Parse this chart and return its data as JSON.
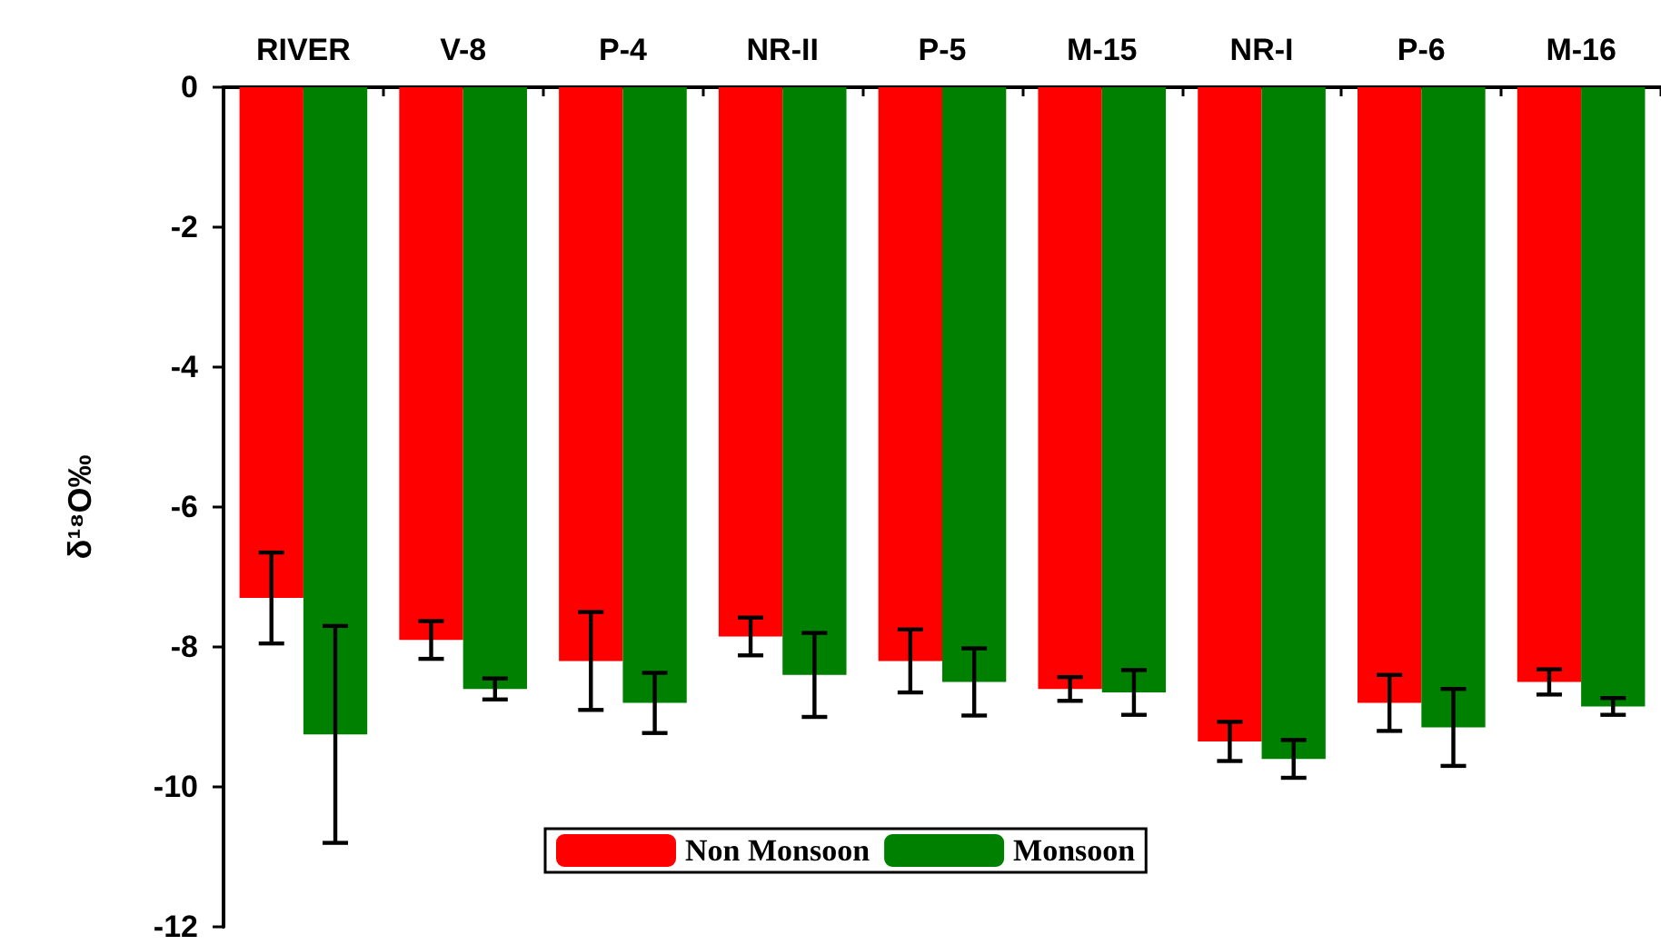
{
  "chart_data": {
    "type": "bar",
    "ylabel": "δ¹⁸O‰",
    "categories": [
      "RIVER",
      "V-8",
      "P-4",
      "NR-II",
      "P-5",
      "M-15",
      "NR-I",
      "P-6",
      "M-16"
    ],
    "series": [
      {
        "name": "Non Monsoon",
        "color": "#ff0000",
        "values": [
          -7.3,
          -7.9,
          -8.2,
          -7.85,
          -8.2,
          -8.6,
          -9.35,
          -8.8,
          -8.5
        ],
        "errors": [
          0.65,
          0.27,
          0.7,
          0.27,
          0.45,
          0.17,
          0.28,
          0.4,
          0.18
        ]
      },
      {
        "name": "Monsoon",
        "color": "#008000",
        "values": [
          -9.25,
          -8.6,
          -8.8,
          -8.4,
          -8.5,
          -8.65,
          -9.6,
          -9.15,
          -8.85
        ],
        "errors": [
          1.55,
          0.15,
          0.43,
          0.6,
          0.48,
          0.32,
          0.27,
          0.55,
          0.12
        ]
      }
    ],
    "ylim": [
      -12,
      0
    ],
    "yticks": [
      -12,
      -10,
      -8,
      -6,
      -4,
      -2,
      0
    ],
    "grid": false,
    "legend": "bottom"
  }
}
